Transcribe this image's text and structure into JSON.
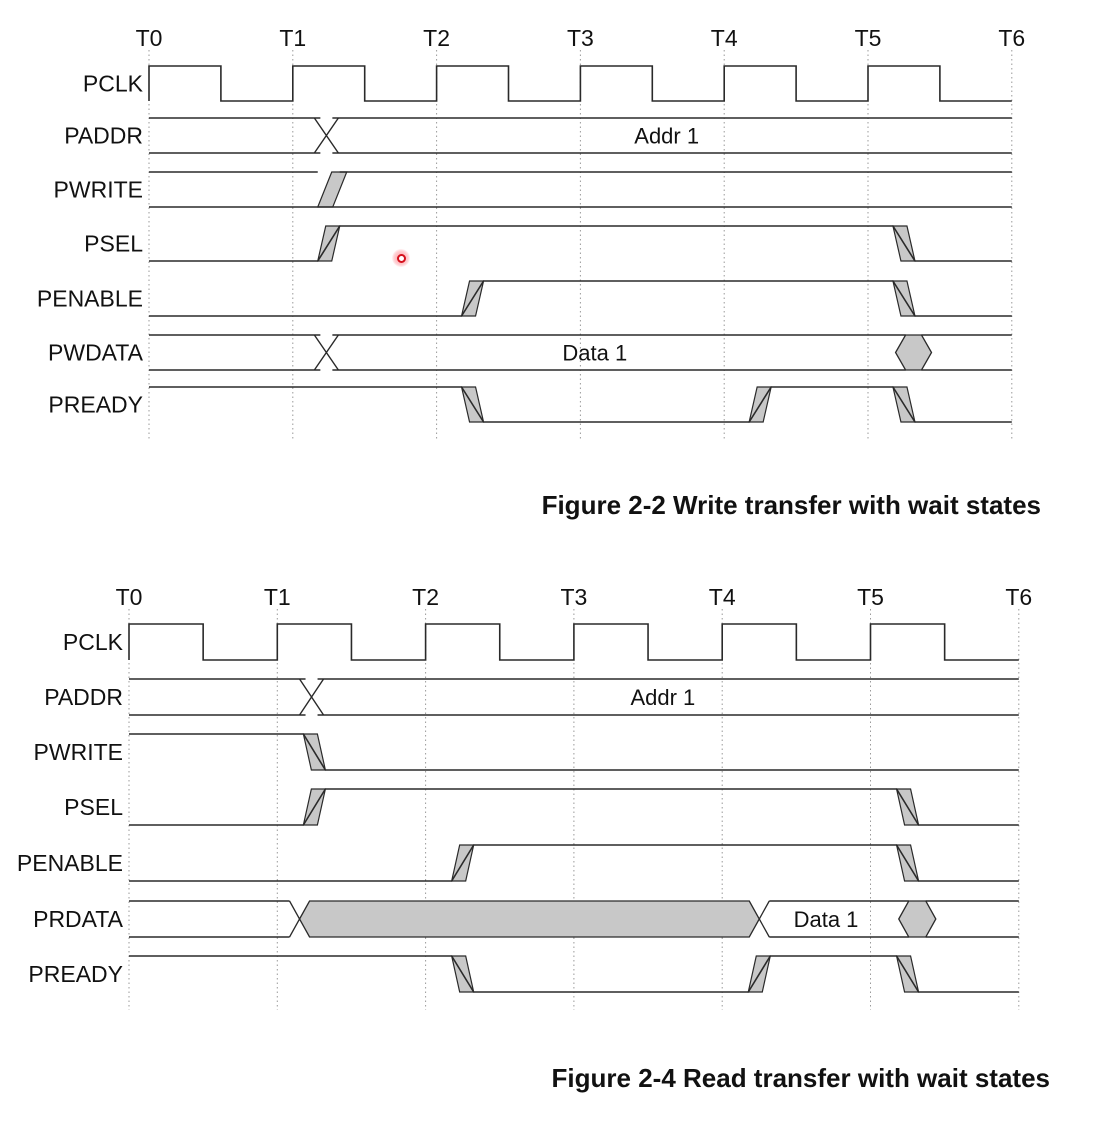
{
  "figures": [
    {
      "id": "write",
      "caption": "Figure 2-2 Write transfer with wait states",
      "time_labels": [
        "T0",
        "T1",
        "T2",
        "T3",
        "T4",
        "T5",
        "T6"
      ],
      "signals": [
        {
          "name": "PCLK",
          "kind": "clock"
        },
        {
          "name": "PADDR",
          "kind": "bus",
          "cross": [
            1.15
          ],
          "label": "Addr 1",
          "label_at": 3.6
        },
        {
          "name": "PWRITE",
          "kind": "level",
          "initial": 1,
          "transitions": [
            {
              "t": 1.25,
              "to": 1
            }
          ]
        },
        {
          "name": "PSEL",
          "kind": "level",
          "initial": 0,
          "transitions": [
            {
              "t": 1.25,
              "to": 1
            },
            {
              "t": 5.25,
              "to": 0
            }
          ]
        },
        {
          "name": "PENABLE",
          "kind": "level",
          "initial": 0,
          "transitions": [
            {
              "t": 2.25,
              "to": 1
            },
            {
              "t": 5.25,
              "to": 0
            }
          ]
        },
        {
          "name": "PWDATA",
          "kind": "bus",
          "cross": [
            1.15
          ],
          "label": "Data 1",
          "label_at": 3.1,
          "gray_box": [
            5.15,
            5.4
          ]
        },
        {
          "name": "PREADY",
          "kind": "level",
          "initial": 1,
          "transitions": [
            {
              "t": 2.25,
              "to": 0
            },
            {
              "t": 4.25,
              "to": 1
            },
            {
              "t": 5.25,
              "to": 0
            }
          ]
        }
      ]
    },
    {
      "id": "read",
      "caption": "Figure 2-4 Read transfer with wait states",
      "time_labels": [
        "T0",
        "T1",
        "T2",
        "T3",
        "T4",
        "T5",
        "T6"
      ],
      "signals": [
        {
          "name": "PCLK",
          "kind": "clock"
        },
        {
          "name": "PADDR",
          "kind": "bus",
          "cross": [
            1.15
          ],
          "label": "Addr 1",
          "label_at": 3.6
        },
        {
          "name": "PWRITE",
          "kind": "level",
          "initial": 1,
          "transitions": [
            {
              "t": 1.25,
              "to": 0
            }
          ]
        },
        {
          "name": "PSEL",
          "kind": "level",
          "initial": 0,
          "transitions": [
            {
              "t": 1.25,
              "to": 1
            },
            {
              "t": 5.25,
              "to": 0
            }
          ]
        },
        {
          "name": "PENABLE",
          "kind": "level",
          "initial": 0,
          "transitions": [
            {
              "t": 2.25,
              "to": 1
            },
            {
              "t": 5.25,
              "to": 0
            }
          ]
        },
        {
          "name": "PRDATA",
          "kind": "bus_read",
          "label": "Data 1",
          "label_at": 4.7,
          "gray_span": [
            1.15,
            4.25
          ],
          "gray_box": [
            5.15,
            5.4
          ]
        },
        {
          "name": "PREADY",
          "kind": "level",
          "initial": 1,
          "transitions": [
            {
              "t": 2.25,
              "to": 0
            },
            {
              "t": 4.25,
              "to": 1
            },
            {
              "t": 5.25,
              "to": 0
            }
          ]
        }
      ]
    }
  ]
}
